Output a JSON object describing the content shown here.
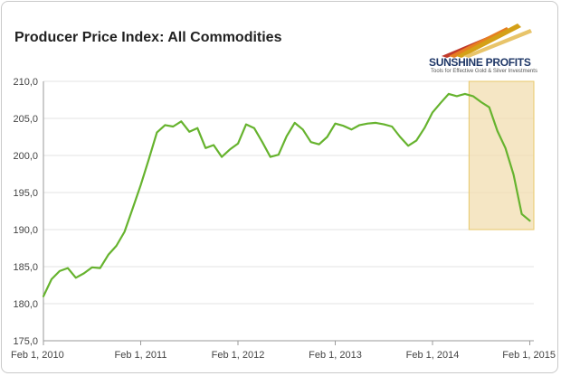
{
  "header": {
    "title": "Producer Price Index: All Commodities"
  },
  "logo": {
    "name": "SUNSHINE PROFITS",
    "tagline": "Tools for Effective Gold & Silver Investments"
  },
  "chart_data": {
    "type": "line",
    "title": "Producer Price Index: All Commodities",
    "xlabel": "",
    "ylabel": "",
    "y_ticks": [
      175,
      180,
      185,
      190,
      195,
      200,
      205,
      210
    ],
    "y_tick_labels": [
      "175,0",
      "180,0",
      "185,0",
      "190,0",
      "195,0",
      "200,0",
      "205,0",
      "210,0"
    ],
    "ylim": [
      175,
      210
    ],
    "x_ticks": [
      0,
      12,
      24,
      36,
      48,
      60
    ],
    "x_tick_labels": [
      "Feb 1, 2010",
      "Feb 1, 2011",
      "Feb 1, 2012",
      "Feb 1, 2013",
      "Feb 1, 2014",
      "Feb 1, 2015"
    ],
    "xlim": [
      0,
      60.5
    ],
    "grid": true,
    "legend": "none",
    "highlight_region": {
      "x_start": 52.5,
      "x_end": 60.5,
      "y_start": 190,
      "y_end": 210,
      "color": "#f1ddb0",
      "border": "#e8c86a"
    },
    "series": [
      {
        "color": "#66b32e",
        "x": [
          0,
          1,
          2,
          3,
          4,
          5,
          6,
          7,
          8,
          9,
          10,
          11,
          12,
          13,
          14,
          15,
          16,
          17,
          18,
          19,
          20,
          21,
          22,
          23,
          24,
          25,
          26,
          27,
          28,
          29,
          30,
          31,
          32,
          33,
          34,
          35,
          36,
          37,
          38,
          39,
          40,
          41,
          42,
          43,
          44,
          45,
          46,
          47,
          48,
          49,
          50,
          51,
          52,
          53,
          54,
          55,
          56,
          57,
          58,
          59,
          60
        ],
        "values": [
          181.0,
          183.3,
          184.4,
          184.8,
          183.5,
          184.1,
          184.9,
          184.8,
          186.6,
          187.8,
          189.7,
          192.8,
          196.0,
          199.5,
          203.1,
          204.1,
          203.9,
          204.6,
          203.2,
          203.7,
          201.0,
          201.4,
          199.8,
          200.8,
          201.6,
          204.2,
          203.7,
          201.8,
          199.8,
          200.1,
          202.6,
          204.4,
          203.5,
          201.8,
          201.5,
          202.5,
          204.3,
          204.0,
          203.5,
          204.1,
          204.3,
          204.4,
          204.2,
          203.9,
          202.5,
          201.3,
          202.0,
          203.7,
          205.8,
          207.1,
          208.3,
          208.0,
          208.3,
          208.0,
          207.2,
          206.5,
          203.3,
          201.0,
          197.4,
          192.1,
          191.2
        ]
      }
    ]
  }
}
